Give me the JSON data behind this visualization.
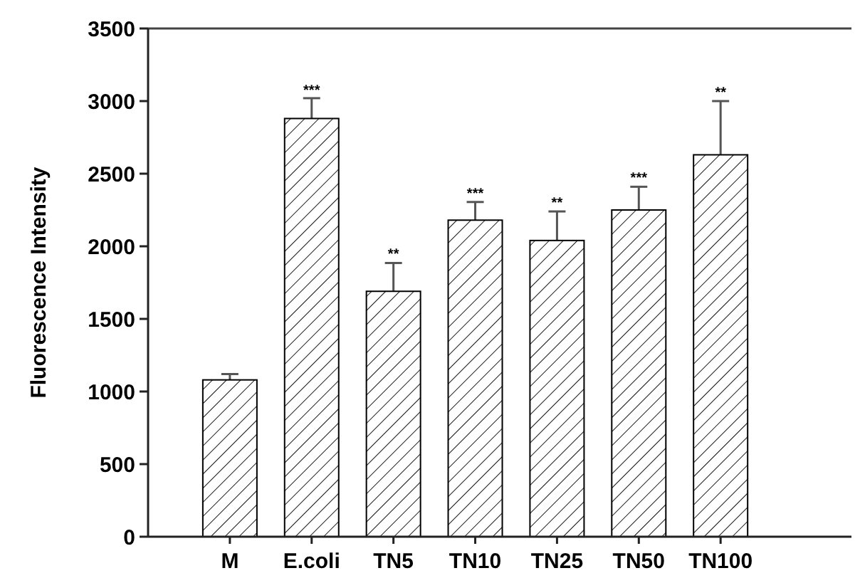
{
  "chart_data": {
    "type": "bar",
    "ylabel": "Fluorescence Intensity",
    "categories": [
      "M",
      "E.coli",
      "TN5",
      "TN10",
      "TN25",
      "TN50",
      "TN100"
    ],
    "values": [
      1080,
      2880,
      1690,
      2180,
      2040,
      2250,
      2630
    ],
    "errors": [
      40,
      140,
      195,
      125,
      200,
      160,
      370
    ],
    "color": "#000000",
    "ylim": [
      0,
      3500
    ],
    "yticks": [
      0,
      500,
      1000,
      1500,
      2000,
      2500,
      3000,
      3500
    ],
    "grid": false,
    "annotations": [
      {
        "text": "***",
        "x": "E.coli",
        "y": 3016
      },
      {
        "text": "**",
        "x": "TN5",
        "y": 1885
      },
      {
        "text": "***",
        "x": "TN10",
        "y": 2305
      },
      {
        "text": "**",
        "x": "TN25",
        "y": 2240
      },
      {
        "text": "***",
        "x": "TN50",
        "y": 2410
      },
      {
        "text": "**",
        "x": "TN100",
        "y": 3000
      }
    ]
  }
}
